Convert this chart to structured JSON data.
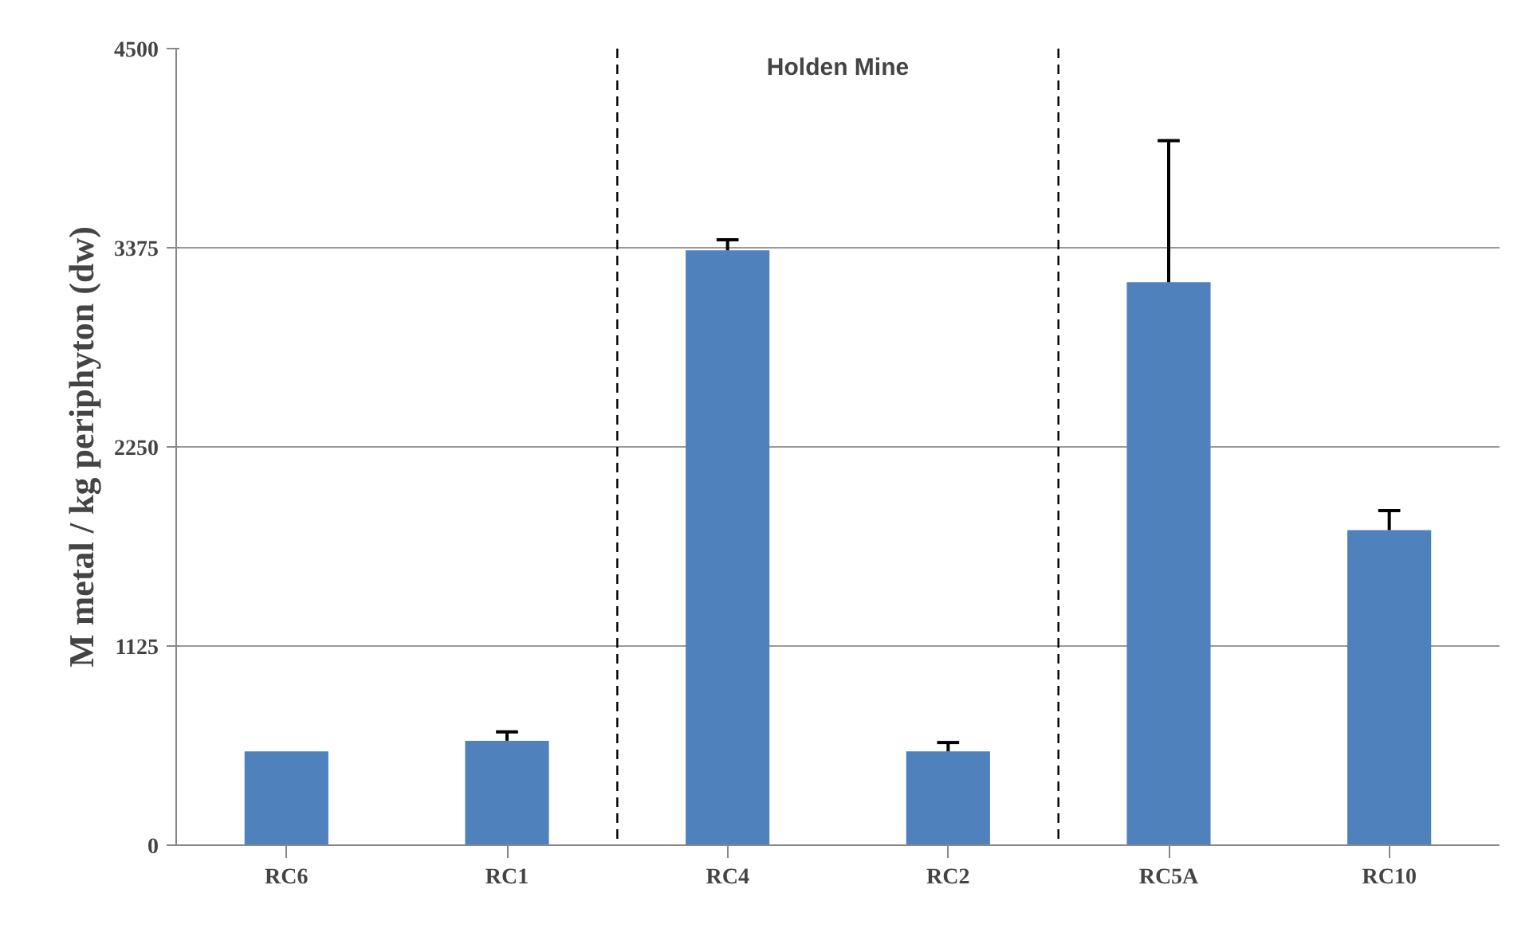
{
  "chart_data": {
    "type": "bar",
    "ylabel": "M metal / kg periphyton (dw)",
    "categories": [
      "RC6",
      "RC1",
      "RC4",
      "RC2",
      "RC5A",
      "RC10"
    ],
    "values": [
      530,
      590,
      3360,
      530,
      3180,
      1780
    ],
    "errors": [
      null,
      [
        590,
        640
      ],
      [
        3360,
        3420
      ],
      [
        530,
        580
      ],
      [
        3180,
        3980
      ],
      [
        1780,
        1890
      ]
    ],
    "color": "#4f81bd",
    "ylim": [
      0,
      4500
    ],
    "yticks": [
      0,
      1125,
      2250,
      3375,
      4500
    ],
    "grid": "y",
    "annotations": [
      "Holden Mine"
    ]
  }
}
